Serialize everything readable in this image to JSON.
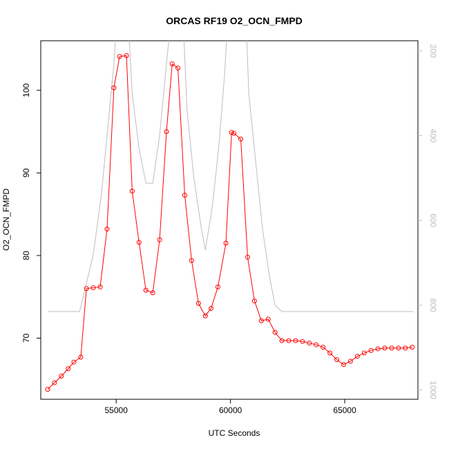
{
  "chart_data": {
    "type": "line",
    "title": "ORCAS RF19 O2_OCN_FMPD",
    "xlabel": "UTC Seconds",
    "ylabel": "O2_OCN_FMPD",
    "xlim": [
      51700,
      68200
    ],
    "ylim": [
      62.6,
      106
    ],
    "x_ticks": [
      55000,
      60000,
      65000
    ],
    "y_ticks": [
      70,
      80,
      90,
      100
    ],
    "right_axis": {
      "ylim": [
        1022,
        176
      ],
      "ticks": [
        200,
        400,
        600,
        800,
        1000
      ],
      "color": "#bdbdbd"
    },
    "grid": false,
    "legend": "none",
    "series": [
      {
        "color": "#ff0000",
        "marker": "open-circle",
        "points": [
          [
            52000,
            63.8
          ],
          [
            52300,
            64.6
          ],
          [
            52600,
            65.4
          ],
          [
            52900,
            66.3
          ],
          [
            53150,
            67.1
          ],
          [
            53450,
            67.7
          ],
          [
            53700,
            76.0
          ],
          [
            54000,
            76.1
          ],
          [
            54300,
            76.2
          ],
          [
            54600,
            83.2
          ],
          [
            54900,
            100.3
          ],
          [
            55150,
            104.1
          ],
          [
            55450,
            104.2
          ],
          [
            55700,
            87.8
          ],
          [
            56000,
            81.6
          ],
          [
            56300,
            75.8
          ],
          [
            56600,
            75.5
          ],
          [
            56900,
            81.9
          ],
          [
            57200,
            95.0
          ],
          [
            57450,
            103.2
          ],
          [
            57700,
            102.7
          ],
          [
            58000,
            87.3
          ],
          [
            58300,
            79.4
          ],
          [
            58600,
            74.2
          ],
          [
            58900,
            72.7
          ],
          [
            59150,
            73.6
          ],
          [
            59450,
            76.2
          ],
          [
            59800,
            81.5
          ],
          [
            60050,
            94.9
          ],
          [
            60150,
            94.8
          ],
          [
            60450,
            94.1
          ],
          [
            60750,
            79.8
          ],
          [
            61050,
            74.5
          ],
          [
            61350,
            72.1
          ],
          [
            61650,
            72.3
          ],
          [
            61950,
            70.7
          ],
          [
            62250,
            69.7
          ],
          [
            62550,
            69.7
          ],
          [
            62850,
            69.7
          ],
          [
            63150,
            69.6
          ],
          [
            63450,
            69.4
          ],
          [
            63750,
            69.2
          ],
          [
            64050,
            68.9
          ],
          [
            64350,
            68.2
          ],
          [
            64650,
            67.4
          ],
          [
            64950,
            66.8
          ],
          [
            65250,
            67.2
          ],
          [
            65550,
            67.8
          ],
          [
            65850,
            68.2
          ],
          [
            66150,
            68.5
          ],
          [
            66450,
            68.7
          ],
          [
            66750,
            68.8
          ],
          [
            67050,
            68.8
          ],
          [
            67350,
            68.8
          ],
          [
            67650,
            68.8
          ],
          [
            67950,
            68.9
          ]
        ]
      },
      {
        "color": "#bdbdbd",
        "marker": "none",
        "axis": "right",
        "points": [
          [
            52000,
            815
          ],
          [
            53400,
            815
          ],
          [
            53650,
            760
          ],
          [
            54000,
            680
          ],
          [
            54350,
            540
          ],
          [
            54600,
            400
          ],
          [
            54900,
            230
          ],
          [
            55000,
            150
          ],
          [
            55550,
            150
          ],
          [
            55700,
            300
          ],
          [
            56000,
            430
          ],
          [
            56300,
            512
          ],
          [
            56600,
            512
          ],
          [
            56900,
            400
          ],
          [
            57200,
            230
          ],
          [
            57350,
            150
          ],
          [
            57950,
            150
          ],
          [
            58100,
            340
          ],
          [
            58400,
            500
          ],
          [
            58700,
            610
          ],
          [
            58900,
            670
          ],
          [
            59200,
            570
          ],
          [
            59500,
            420
          ],
          [
            59750,
            250
          ],
          [
            59850,
            150
          ],
          [
            60700,
            150
          ],
          [
            60800,
            300
          ],
          [
            61100,
            460
          ],
          [
            61400,
            620
          ],
          [
            61700,
            730
          ],
          [
            61950,
            800
          ],
          [
            62250,
            815
          ],
          [
            68000,
            815
          ]
        ]
      }
    ]
  }
}
